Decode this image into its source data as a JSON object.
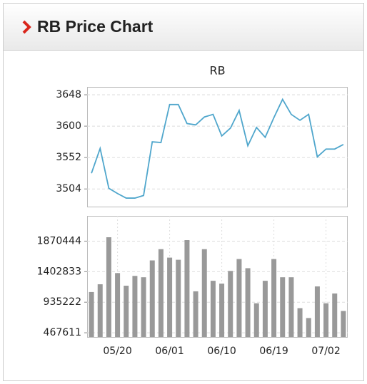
{
  "header": {
    "title": "RB Price Chart"
  },
  "chart_data": [
    {
      "type": "line",
      "title": "RB",
      "color": "#4fa6cc",
      "values": [
        3528,
        3566,
        3505,
        3497,
        3490,
        3490,
        3494,
        3576,
        3575,
        3633,
        3633,
        3604,
        3602,
        3614,
        3618,
        3585,
        3597,
        3624,
        3570,
        3598,
        3583,
        3613,
        3641,
        3618,
        3609,
        3618,
        3553,
        3565,
        3565,
        3572
      ],
      "ylim": [
        3477,
        3660
      ],
      "yticks": [
        3504,
        3552,
        3600,
        3648
      ],
      "grid": true
    },
    {
      "type": "bar",
      "color": "#999999",
      "categories": [
        null,
        null,
        null,
        "05/20",
        null,
        null,
        null,
        null,
        null,
        "06/01",
        null,
        null,
        null,
        null,
        null,
        "06/10",
        null,
        null,
        null,
        null,
        null,
        "06/19",
        null,
        null,
        null,
        null,
        null,
        "07/02",
        null,
        null
      ],
      "values": [
        1091000,
        1210000,
        1930000,
        1381000,
        1188000,
        1338000,
        1317000,
        1575000,
        1747000,
        1618000,
        1585000,
        1886000,
        1102000,
        1747000,
        1263000,
        1220000,
        1414000,
        1596000,
        1456000,
        919000,
        1263000,
        1596000,
        1317000,
        1317000,
        844000,
        693000,
        1177000,
        919000,
        1069000,
        801000
      ],
      "ylim": [
        403000,
        2257000
      ],
      "yticks": [
        467611,
        935222,
        1402833,
        1870444
      ],
      "grid": true
    }
  ]
}
